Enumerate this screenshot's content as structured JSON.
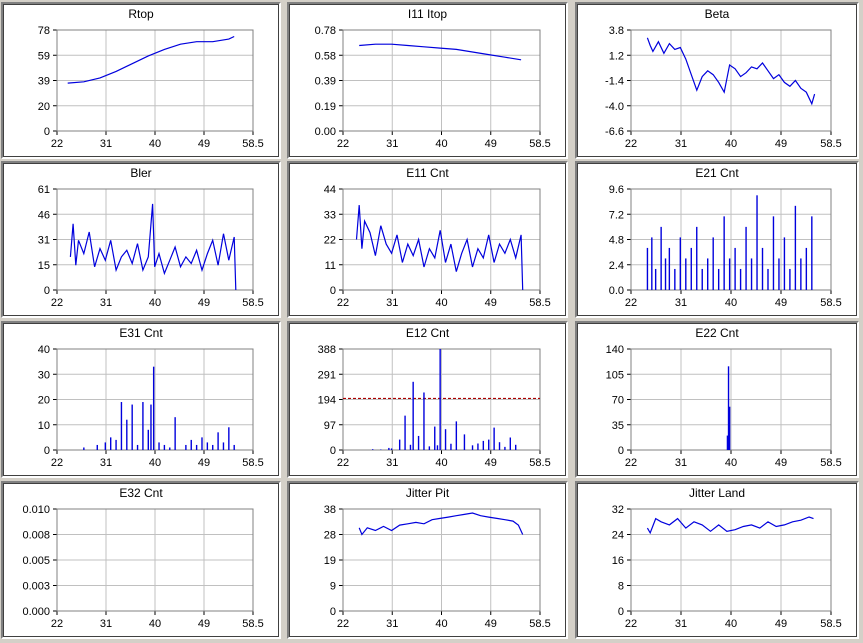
{
  "colors": {
    "series": "#0000dd",
    "threshold": "#aa0000",
    "grid": "#c0c0c0",
    "background": "#d4d0c8"
  },
  "chart_data": [
    {
      "type": "line",
      "title": "Rtop",
      "x_ticks": [
        "22",
        "31",
        "40",
        "49",
        "58.5"
      ],
      "y_ticks": [
        "0",
        "20",
        "39",
        "59",
        "78"
      ],
      "xlim": [
        22,
        58.5
      ],
      "ylim": [
        0,
        78
      ],
      "grid": true,
      "series": [
        {
          "x": [
            24,
            27,
            30,
            33,
            36,
            39,
            42,
            45,
            48,
            51,
            54,
            55
          ],
          "y": [
            37,
            38,
            41,
            46,
            52,
            58,
            63,
            67,
            69,
            69,
            71,
            73
          ]
        }
      ]
    },
    {
      "type": "line",
      "title": "I11 Itop",
      "x_ticks": [
        "22",
        "31",
        "40",
        "49",
        "58.5"
      ],
      "y_ticks": [
        "0.00",
        "0.19",
        "0.39",
        "0.58",
        "0.78"
      ],
      "xlim": [
        22,
        58.5
      ],
      "ylim": [
        0,
        0.78
      ],
      "grid": true,
      "series": [
        {
          "x": [
            25,
            28,
            31,
            34,
            37,
            40,
            43,
            46,
            49,
            52,
            55
          ],
          "y": [
            0.66,
            0.67,
            0.67,
            0.66,
            0.65,
            0.64,
            0.63,
            0.61,
            0.59,
            0.57,
            0.55
          ]
        }
      ]
    },
    {
      "type": "line",
      "title": "Beta",
      "x_ticks": [
        "22",
        "31",
        "40",
        "49",
        "58.5"
      ],
      "y_ticks": [
        "-6.6",
        "-4.0",
        "-1.4",
        "1.2",
        "3.8"
      ],
      "xlim": [
        22,
        58.5
      ],
      "ylim": [
        -6.6,
        3.8
      ],
      "grid": true,
      "series": [
        {
          "x": [
            25,
            25.5,
            26,
            27,
            28,
            29,
            30,
            31,
            32,
            33,
            34,
            35,
            36,
            37,
            38,
            39,
            40,
            41,
            42,
            43,
            44,
            45,
            46,
            47,
            48,
            49,
            50,
            51,
            52,
            53,
            54,
            55,
            55.5
          ],
          "y": [
            3.0,
            2.2,
            1.6,
            2.6,
            1.4,
            2.4,
            1.8,
            2.0,
            0.8,
            -0.8,
            -2.4,
            -1.0,
            -0.4,
            -0.8,
            -1.6,
            -2.6,
            0.2,
            -0.2,
            -1.0,
            -0.6,
            0.0,
            -0.2,
            0.4,
            -0.4,
            -1.2,
            -0.8,
            -1.6,
            -2.0,
            -1.4,
            -2.2,
            -2.6,
            -3.8,
            -2.8
          ]
        }
      ]
    },
    {
      "type": "line",
      "title": "Bler",
      "x_ticks": [
        "22",
        "31",
        "40",
        "49",
        "58.5"
      ],
      "y_ticks": [
        "0",
        "15",
        "31",
        "46",
        "61"
      ],
      "xlim": [
        22,
        58.5
      ],
      "ylim": [
        0,
        61
      ],
      "grid": true,
      "series": [
        {
          "x": [
            24.5,
            25,
            25.5,
            26,
            27,
            28,
            29,
            30,
            31,
            32,
            33,
            34,
            35,
            36,
            37,
            38,
            39,
            39.8,
            40.2,
            41,
            42,
            43,
            44,
            45,
            46,
            47,
            48,
            49,
            50,
            51,
            52,
            53,
            54,
            55,
            55.3
          ],
          "y": [
            20,
            40,
            15,
            30,
            22,
            35,
            14,
            25,
            18,
            30,
            12,
            20,
            24,
            16,
            28,
            12,
            20,
            52,
            14,
            22,
            10,
            18,
            26,
            14,
            20,
            16,
            24,
            12,
            22,
            30,
            15,
            34,
            18,
            32,
            0
          ]
        }
      ]
    },
    {
      "type": "line",
      "title": "E11 Cnt",
      "x_ticks": [
        "22",
        "31",
        "40",
        "49",
        "58.5"
      ],
      "y_ticks": [
        "0",
        "11",
        "22",
        "33",
        "44"
      ],
      "xlim": [
        22,
        58.5
      ],
      "ylim": [
        0,
        44
      ],
      "grid": true,
      "series": [
        {
          "x": [
            24.5,
            25,
            25.5,
            26,
            27,
            28,
            29,
            30,
            31,
            32,
            33,
            34,
            35,
            36,
            37,
            38,
            39,
            40,
            41,
            42,
            43,
            44,
            45,
            46,
            47,
            48,
            49,
            50,
            51,
            52,
            53,
            54,
            55,
            55.3
          ],
          "y": [
            22,
            37,
            18,
            30,
            25,
            15,
            28,
            20,
            16,
            24,
            12,
            20,
            15,
            22,
            10,
            18,
            14,
            26,
            12,
            20,
            8,
            16,
            22,
            10,
            18,
            14,
            24,
            12,
            20,
            16,
            22,
            14,
            24,
            0
          ]
        }
      ]
    },
    {
      "type": "bar",
      "title": "E21 Cnt",
      "x_ticks": [
        "22",
        "31",
        "40",
        "49",
        "58.5"
      ],
      "y_ticks": [
        "0.0",
        "2.4",
        "4.8",
        "7.2",
        "9.6"
      ],
      "xlim": [
        22,
        58.5
      ],
      "ylim": [
        0,
        9.6
      ],
      "grid": true,
      "series": [
        {
          "x": [
            25,
            25.8,
            26.5,
            27.5,
            28.3,
            29,
            30,
            31,
            32,
            33,
            34,
            35,
            36,
            37,
            38,
            39,
            40,
            41,
            42,
            43,
            44,
            45,
            46,
            47,
            48,
            49,
            50,
            51,
            52,
            53,
            54,
            55
          ],
          "y": [
            4,
            5,
            2,
            6,
            3,
            4,
            2,
            5,
            3,
            4,
            6,
            2,
            3,
            5,
            2,
            7,
            3,
            4,
            2,
            6,
            3,
            9,
            4,
            2,
            7,
            3,
            5,
            2,
            8,
            3,
            4,
            7
          ]
        }
      ]
    },
    {
      "type": "bar",
      "title": "E31 Cnt",
      "x_ticks": [
        "22",
        "31",
        "40",
        "49",
        "58.5"
      ],
      "y_ticks": [
        "0",
        "10",
        "20",
        "30",
        "40"
      ],
      "xlim": [
        22,
        58.5
      ],
      "ylim": [
        0,
        40
      ],
      "grid": true,
      "series": [
        {
          "x": [
            27,
            29.5,
            31,
            32,
            33,
            34,
            35,
            36,
            37,
            38,
            39,
            39.5,
            40,
            41,
            42,
            43,
            44,
            46,
            47,
            48,
            49,
            50,
            51,
            52,
            53,
            54,
            55
          ],
          "y": [
            1,
            2,
            3,
            5,
            4,
            19,
            12,
            18,
            2,
            19,
            8,
            18,
            33,
            3,
            2,
            1,
            13,
            2,
            4,
            2,
            5,
            3,
            2,
            7,
            3,
            9,
            2
          ]
        }
      ]
    },
    {
      "type": "bar",
      "title": "E12 Cnt",
      "x_ticks": [
        "22",
        "31",
        "40",
        "49",
        "58.5"
      ],
      "y_ticks": [
        "0",
        "97",
        "194",
        "291",
        "388"
      ],
      "xlim": [
        22,
        58.5
      ],
      "ylim": [
        0,
        388
      ],
      "grid": true,
      "threshold": 198,
      "series": [
        {
          "x": [
            27.5,
            29,
            30.5,
            31,
            32.5,
            33.5,
            34.5,
            35,
            36,
            37,
            38,
            39,
            39.5,
            40,
            41,
            42,
            43,
            44.5,
            46,
            47,
            48,
            49,
            50,
            51,
            52,
            53,
            54
          ],
          "y": [
            3,
            2,
            8,
            6,
            40,
            132,
            20,
            262,
            54,
            221,
            14,
            90,
            18,
            388,
            80,
            24,
            110,
            60,
            18,
            25,
            35,
            40,
            86,
            30,
            12,
            48,
            20
          ]
        }
      ]
    },
    {
      "type": "bar",
      "title": "E22 Cnt",
      "x_ticks": [
        "22",
        "31",
        "40",
        "49",
        "58.5"
      ],
      "y_ticks": [
        "0",
        "35",
        "70",
        "105",
        "140"
      ],
      "xlim": [
        22,
        58.5
      ],
      "ylim": [
        0,
        140
      ],
      "grid": true,
      "series": [
        {
          "x": [
            39.6,
            39.8,
            40.0
          ],
          "y": [
            20,
            116,
            60
          ]
        }
      ]
    },
    {
      "type": "line",
      "title": "E32 Cnt",
      "x_ticks": [
        "22",
        "31",
        "40",
        "49",
        "58.5"
      ],
      "y_ticks": [
        "0.000",
        "0.003",
        "0.005",
        "0.008",
        "0.010"
      ],
      "xlim": [
        22,
        58.5
      ],
      "ylim": [
        0,
        0.01
      ],
      "grid": true,
      "series": [
        {
          "x": [],
          "y": []
        }
      ]
    },
    {
      "type": "line",
      "title": "Jitter Pit",
      "x_ticks": [
        "22",
        "31",
        "40",
        "49",
        "58.5"
      ],
      "y_ticks": [
        "0",
        "9",
        "19",
        "28",
        "38"
      ],
      "xlim": [
        22,
        58.5
      ],
      "ylim": [
        0,
        38
      ],
      "grid": true,
      "series": [
        {
          "x": [
            25,
            25.5,
            26.5,
            28,
            29.5,
            31,
            32.5,
            34,
            35.5,
            37,
            38.5,
            40,
            41.5,
            43,
            44.5,
            46,
            47.5,
            49,
            50.5,
            52,
            53.5,
            54.5,
            55.3
          ],
          "y": [
            31,
            28.5,
            31,
            30,
            31.5,
            30,
            32,
            32.5,
            33,
            32.5,
            34,
            34.5,
            35,
            35.5,
            36,
            36.5,
            35.5,
            35,
            34.5,
            34,
            33.5,
            32,
            28.5
          ]
        }
      ]
    },
    {
      "type": "line",
      "title": "Jitter Land",
      "x_ticks": [
        "22",
        "31",
        "40",
        "49",
        "58.5"
      ],
      "y_ticks": [
        "0",
        "8",
        "16",
        "24",
        "32"
      ],
      "xlim": [
        22,
        58.5
      ],
      "ylim": [
        0,
        32
      ],
      "grid": true,
      "series": [
        {
          "x": [
            25,
            25.5,
            26.5,
            27.5,
            29,
            30.5,
            32,
            33.5,
            35,
            36.5,
            38,
            39.5,
            41,
            42.5,
            44,
            45.5,
            47,
            48.5,
            50,
            51.5,
            53,
            54.5,
            55.3
          ],
          "y": [
            26,
            24.5,
            29,
            28,
            27,
            29,
            26,
            28,
            27,
            25,
            27,
            25,
            25.5,
            26.5,
            27,
            26,
            28,
            26.5,
            27,
            28,
            28.5,
            29.5,
            29
          ]
        }
      ]
    }
  ]
}
